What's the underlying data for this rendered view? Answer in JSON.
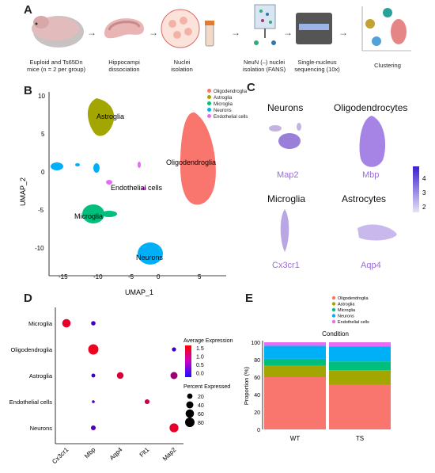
{
  "panels": {
    "a": "A",
    "b": "B",
    "c": "C",
    "d": "D",
    "e": "E"
  },
  "panel_a": {
    "steps": [
      "Euploid and Ts65Dn mice (n = 2 per group)",
      "Hippocampi dissociation",
      "Nuclei isolation",
      "NeuN (–) nuclei isolation (FANS)",
      "Single-nucleus sequencing (10x)",
      "Clustering"
    ],
    "arrow": "→"
  },
  "panel_b": {
    "xlabel": "UMAP_1",
    "ylabel": "UMAP_2",
    "xticks": [
      "-15",
      "-10",
      "-5",
      "0",
      "5"
    ],
    "yticks": [
      "10",
      "5",
      "0",
      "-5",
      "-10"
    ],
    "cluster_labels": [
      "Astroglia",
      "Oligodendroglia",
      "Endothelial cells",
      "Microglia",
      "Neurons"
    ],
    "legend": [
      {
        "name": "Oligodendroglia",
        "color": "#f8766d"
      },
      {
        "name": "Astroglia",
        "color": "#a3a500"
      },
      {
        "name": "Microglia",
        "color": "#00bf7d"
      },
      {
        "name": "Neurons",
        "color": "#00b0f6"
      },
      {
        "name": "Endothelial cells",
        "color": "#e76bf3"
      }
    ]
  },
  "panel_c": {
    "titles": [
      "Neurons",
      "Oligodendrocytes",
      "Microglia",
      "Astrocytes"
    ],
    "genes": [
      "Map2",
      "Mbp",
      "Cx3cr1",
      "Aqp4"
    ],
    "scale_ticks": [
      "4",
      "3",
      "2"
    ]
  },
  "chart_data": [
    {
      "type": "scatter",
      "rows": [
        "Microglia",
        "Oligodendroglia",
        "Astroglia",
        "Endothelial cells",
        "Neurons"
      ],
      "columns": [
        "Cx3cr1",
        "Mbp",
        "Aqp4",
        "Flt1",
        "Map2"
      ],
      "legend_title_color": "Average Expression",
      "color_ticks": [
        "1.5",
        "1.0",
        "0.5",
        "0.0"
      ],
      "legend_title_size": "Percent Expressed",
      "size_ticks": [
        "20",
        "40",
        "60",
        "80"
      ],
      "points": [
        {
          "row": "Microglia",
          "col": "Cx3cr1",
          "avg": 1.5,
          "pct": 60
        },
        {
          "row": "Microglia",
          "col": "Mbp",
          "avg": 0.2,
          "pct": 12
        },
        {
          "row": "Oligodendroglia",
          "col": "Mbp",
          "avg": 1.6,
          "pct": 95
        },
        {
          "row": "Oligodendroglia",
          "col": "Map2",
          "avg": 0.2,
          "pct": 10
        },
        {
          "row": "Astroglia",
          "col": "Mbp",
          "avg": 0.2,
          "pct": 8
        },
        {
          "row": "Astroglia",
          "col": "Aqp4",
          "avg": 1.4,
          "pct": 35
        },
        {
          "row": "Astroglia",
          "col": "Map2",
          "avg": 0.9,
          "pct": 40
        },
        {
          "row": "Endothelial cells",
          "col": "Mbp",
          "avg": 0.3,
          "pct": 3
        },
        {
          "row": "Endothelial cells",
          "col": "Flt1",
          "avg": 1.3,
          "pct": 15
        },
        {
          "row": "Neurons",
          "col": "Mbp",
          "avg": 0.3,
          "pct": 15
        },
        {
          "row": "Neurons",
          "col": "Map2",
          "avg": 1.5,
          "pct": 70
        }
      ]
    },
    {
      "type": "bar",
      "title": "Condition",
      "ylabel": "Proportion (%)",
      "categories": [
        "WT",
        "TS"
      ],
      "yticks": [
        "100",
        "80",
        "60",
        "40",
        "20",
        "0"
      ],
      "ylim": [
        0,
        100
      ],
      "series": [
        {
          "name": "Oligodendroglia",
          "color": "#f8766d",
          "values": [
            60,
            51
          ]
        },
        {
          "name": "Astroglia",
          "color": "#a3a500",
          "values": [
            13,
            17
          ]
        },
        {
          "name": "Microglia",
          "color": "#00bf7d",
          "values": [
            8,
            10
          ]
        },
        {
          "name": "Neurons",
          "color": "#00b0f6",
          "values": [
            15,
            17
          ]
        },
        {
          "name": "Endothelial cells",
          "color": "#e76bf3",
          "values": [
            4,
            5
          ]
        }
      ]
    }
  ]
}
